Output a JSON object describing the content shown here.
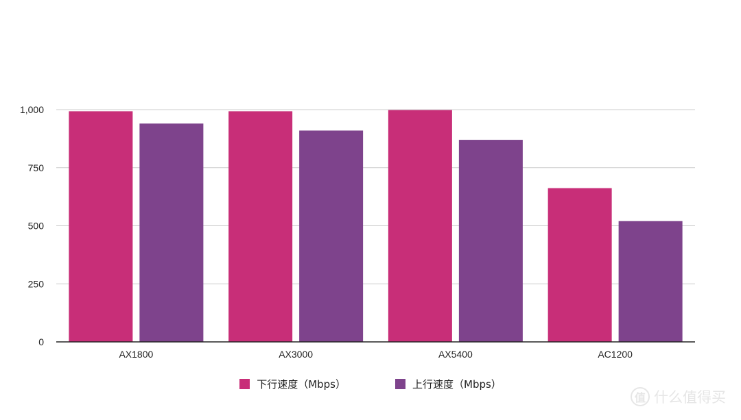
{
  "chart_data": {
    "type": "bar",
    "categories": [
      "AX1800",
      "AX3000",
      "AX5400",
      "AC1200"
    ],
    "series": [
      {
        "name": "下行速度（Mbps）",
        "color": "#c82e78",
        "values": [
          993,
          993,
          998,
          662
        ]
      },
      {
        "name": "上行速度（Mbps）",
        "color": "#7e438c",
        "values": [
          940,
          910,
          870,
          520
        ]
      }
    ],
    "yticks": [
      "0",
      "250",
      "500",
      "750",
      "1,000"
    ],
    "ylim": [
      0,
      1000
    ],
    "grid": true,
    "legend_position": "bottom"
  },
  "watermark": {
    "badge": "值",
    "text": "什么值得买"
  }
}
